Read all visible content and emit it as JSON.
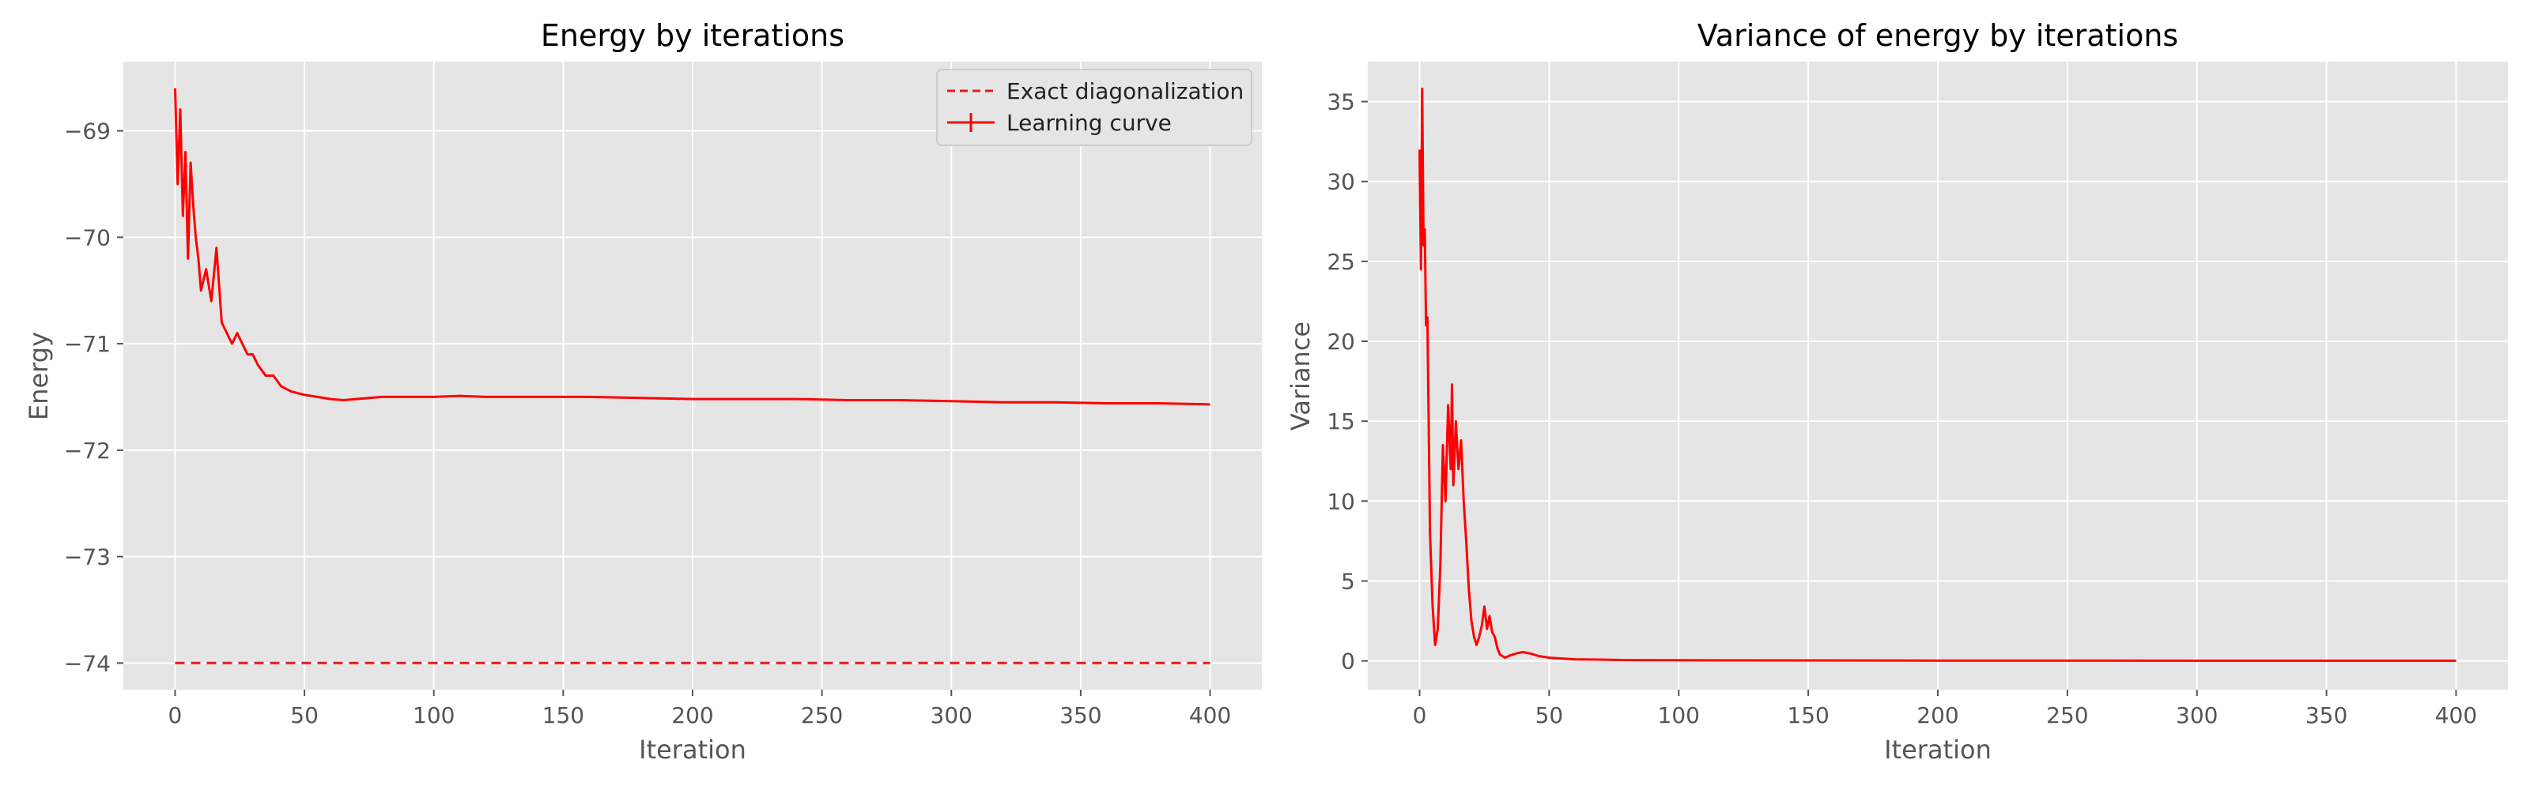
{
  "chart_data": [
    {
      "type": "line",
      "title": "Energy by iterations",
      "xlabel": "Iteration",
      "ylabel": "Energy",
      "xlim": [
        -20,
        420
      ],
      "ylim": [
        -74.25,
        -68.35
      ],
      "xticks": [
        0,
        50,
        100,
        150,
        200,
        250,
        300,
        350,
        400
      ],
      "xtick_labels": [
        "0",
        "50",
        "100",
        "150",
        "200",
        "250",
        "300",
        "350",
        "400"
      ],
      "yticks": [
        -74,
        -73,
        -72,
        -71,
        -70,
        -69
      ],
      "ytick_labels": [
        "−74",
        "−73",
        "−72",
        "−71",
        "−70",
        "−69"
      ],
      "grid": true,
      "legend_position": "top-right",
      "series": [
        {
          "name": "Exact diagonalization",
          "style": "dashed",
          "x": [
            0,
            400
          ],
          "y": [
            -74.0,
            -74.0
          ]
        },
        {
          "name": "Learning curve",
          "style": "solid",
          "x": [
            0,
            1,
            2,
            3,
            4,
            5,
            6,
            7,
            8,
            9,
            10,
            12,
            14,
            16,
            18,
            20,
            22,
            24,
            26,
            28,
            30,
            32,
            35,
            38,
            41,
            45,
            50,
            55,
            60,
            65,
            70,
            80,
            90,
            100,
            110,
            120,
            140,
            160,
            180,
            200,
            220,
            240,
            260,
            280,
            300,
            320,
            340,
            360,
            380,
            400
          ],
          "y": [
            -68.6,
            -69.5,
            -68.8,
            -69.8,
            -69.2,
            -70.2,
            -69.3,
            -69.7,
            -70.0,
            -70.2,
            -70.5,
            -70.3,
            -70.6,
            -70.1,
            -70.8,
            -70.9,
            -71.0,
            -70.9,
            -71.0,
            -71.1,
            -71.1,
            -71.2,
            -71.3,
            -71.3,
            -71.4,
            -71.45,
            -71.48,
            -71.5,
            -71.52,
            -71.53,
            -71.52,
            -71.5,
            -71.5,
            -71.5,
            -71.49,
            -71.5,
            -71.5,
            -71.5,
            -71.51,
            -71.52,
            -71.52,
            -71.52,
            -71.53,
            -71.53,
            -71.54,
            -71.55,
            -71.55,
            -71.56,
            -71.56,
            -71.57
          ]
        }
      ]
    },
    {
      "type": "line",
      "title": "Variance of energy by iterations",
      "xlabel": "Iteration",
      "ylabel": "Variance",
      "xlim": [
        -20,
        420
      ],
      "ylim": [
        -1.8,
        37.5
      ],
      "xticks": [
        0,
        50,
        100,
        150,
        200,
        250,
        300,
        350,
        400
      ],
      "xtick_labels": [
        "0",
        "50",
        "100",
        "150",
        "200",
        "250",
        "300",
        "350",
        "400"
      ],
      "yticks": [
        0,
        5,
        10,
        15,
        20,
        25,
        30,
        35
      ],
      "ytick_labels": [
        "0",
        "5",
        "10",
        "15",
        "20",
        "25",
        "30",
        "35"
      ],
      "grid": true,
      "series": [
        {
          "style": "solid",
          "x": [
            0,
            0.5,
            1,
            1.5,
            2,
            2.5,
            3,
            3.5,
            4,
            5,
            6,
            7,
            8,
            9,
            10,
            11,
            12,
            12.5,
            13,
            14,
            15,
            16,
            17,
            18,
            19,
            20,
            21,
            22,
            23,
            24,
            25,
            26,
            27,
            28,
            29,
            30,
            31,
            33,
            35,
            38,
            40,
            43,
            46,
            50,
            55,
            60,
            70,
            80,
            100,
            150,
            200,
            250,
            300,
            350,
            400
          ],
          "y": [
            32.0,
            24.5,
            35.8,
            26.0,
            27.0,
            21.0,
            21.5,
            15.0,
            8.0,
            3.5,
            1.0,
            2.0,
            6.0,
            13.5,
            10.0,
            16.0,
            12.0,
            17.3,
            11.0,
            15.0,
            12.0,
            13.8,
            10.0,
            7.5,
            4.5,
            2.5,
            1.5,
            1.0,
            1.5,
            2.2,
            3.4,
            2.0,
            2.8,
            1.8,
            1.5,
            0.8,
            0.4,
            0.2,
            0.35,
            0.5,
            0.55,
            0.45,
            0.3,
            0.2,
            0.15,
            0.1,
            0.08,
            0.05,
            0.04,
            0.03,
            0.02,
            0.02,
            0.01,
            0.01,
            0.01
          ]
        }
      ]
    }
  ]
}
